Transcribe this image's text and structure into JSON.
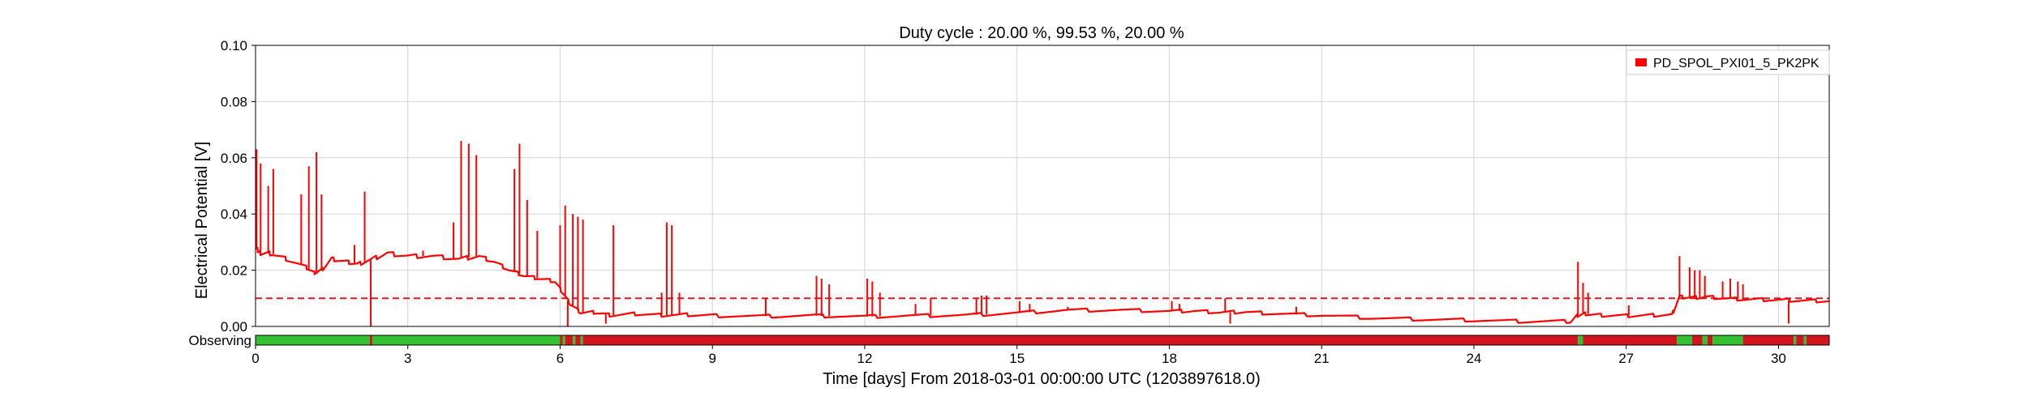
{
  "chart_data": {
    "type": "line",
    "title": "Duty cycle : 20.00 %, 99.53 %, 20.00 %",
    "xlabel": "Time [days] From 2018-03-01 00:00:00 UTC (1203897618.0)",
    "ylabel": "Electrical Potential [V]",
    "xlim": [
      0,
      31
    ],
    "ylim": [
      0,
      0.1
    ],
    "x_ticks": [
      0,
      3,
      6,
      9,
      12,
      15,
      18,
      21,
      24,
      27,
      30
    ],
    "y_ticks": [
      0.0,
      0.02,
      0.04,
      0.06,
      0.08,
      0.1
    ],
    "y_tick_labels": [
      "0.00",
      "0.02",
      "0.04",
      "0.06",
      "0.08",
      "0.10"
    ],
    "grid": true,
    "legend_position": "top-right",
    "threshold": {
      "value": 0.01,
      "style": "dashed",
      "color": "#e8141c"
    },
    "series": [
      {
        "name": "PD_SPOL_PXI01_5_PK2PK",
        "color": "#ff0000",
        "x": [
          0,
          0.05,
          0.1,
          0.3,
          0.6,
          1.0,
          1.15,
          1.3,
          1.5,
          1.8,
          2.0,
          2.3,
          2.6,
          3.0,
          3.5,
          4.0,
          4.4,
          4.7,
          5.0,
          5.3,
          5.6,
          5.9,
          6.05,
          6.2,
          6.4,
          6.7,
          7.0,
          7.5,
          8.0,
          8.5,
          9.0,
          10.0,
          11.0,
          12.0,
          13.0,
          14.0,
          15.0,
          16.0,
          17.0,
          18.0,
          18.5,
          19.0,
          19.5,
          20.0,
          21.0,
          22.0,
          23.0,
          24.0,
          25.0,
          25.9,
          26.05,
          26.2,
          26.5,
          27.0,
          27.5,
          27.9,
          28.05,
          28.3,
          28.6,
          29.0,
          29.5,
          30.0,
          30.5,
          31.0
        ],
        "values": [
          0.028,
          0.027,
          0.026,
          0.026,
          0.024,
          0.021,
          0.019,
          0.02,
          0.024,
          0.023,
          0.022,
          0.024,
          0.026,
          0.025,
          0.025,
          0.024,
          0.025,
          0.023,
          0.02,
          0.018,
          0.017,
          0.016,
          0.012,
          0.008,
          0.005,
          0.005,
          0.004,
          0.0045,
          0.004,
          0.0042,
          0.0038,
          0.0036,
          0.0038,
          0.0035,
          0.0038,
          0.004,
          0.0048,
          0.0058,
          0.0058,
          0.0055,
          0.0055,
          0.005,
          0.0052,
          0.0045,
          0.004,
          0.003,
          0.0025,
          0.0022,
          0.0018,
          0.0018,
          0.004,
          0.0045,
          0.004,
          0.0038,
          0.004,
          0.004,
          0.0105,
          0.0102,
          0.0105,
          0.0098,
          0.0096,
          0.0094,
          0.0092,
          0.009
        ]
      }
    ],
    "spikes": [
      [
        0.02,
        0.063
      ],
      [
        0.1,
        0.058
      ],
      [
        0.25,
        0.05
      ],
      [
        0.35,
        0.056
      ],
      [
        0.9,
        0.047
      ],
      [
        1.05,
        0.057
      ],
      [
        1.2,
        0.062
      ],
      [
        1.3,
        0.047
      ],
      [
        1.95,
        0.029
      ],
      [
        2.15,
        0.048
      ],
      [
        2.27,
        0.0
      ],
      [
        3.3,
        0.027
      ],
      [
        3.9,
        0.037
      ],
      [
        4.05,
        0.066
      ],
      [
        4.2,
        0.065
      ],
      [
        4.35,
        0.061
      ],
      [
        5.1,
        0.056
      ],
      [
        5.2,
        0.065
      ],
      [
        5.35,
        0.045
      ],
      [
        5.55,
        0.034
      ],
      [
        6.0,
        0.036
      ],
      [
        6.1,
        0.043
      ],
      [
        6.15,
        0.0
      ],
      [
        6.25,
        0.04
      ],
      [
        6.35,
        0.039
      ],
      [
        6.45,
        0.038
      ],
      [
        6.9,
        0.001
      ],
      [
        7.05,
        0.036
      ],
      [
        8.0,
        0.012
      ],
      [
        8.1,
        0.037
      ],
      [
        8.2,
        0.036
      ],
      [
        8.35,
        0.012
      ],
      [
        10.05,
        0.01
      ],
      [
        11.05,
        0.018
      ],
      [
        11.15,
        0.017
      ],
      [
        11.3,
        0.015
      ],
      [
        12.05,
        0.017
      ],
      [
        12.15,
        0.016
      ],
      [
        12.3,
        0.012
      ],
      [
        13.0,
        0.008
      ],
      [
        13.3,
        0.01
      ],
      [
        14.2,
        0.01
      ],
      [
        14.3,
        0.011
      ],
      [
        14.4,
        0.011
      ],
      [
        15.05,
        0.009
      ],
      [
        15.25,
        0.008
      ],
      [
        16.0,
        0.007
      ],
      [
        18.05,
        0.009
      ],
      [
        18.2,
        0.008
      ],
      [
        19.1,
        0.01
      ],
      [
        19.2,
        0.001
      ],
      [
        20.5,
        0.007
      ],
      [
        26.05,
        0.023
      ],
      [
        26.15,
        0.0155
      ],
      [
        26.25,
        0.012
      ],
      [
        27.05,
        0.0075
      ],
      [
        28.05,
        0.025
      ],
      [
        28.25,
        0.021
      ],
      [
        28.35,
        0.02
      ],
      [
        28.45,
        0.02
      ],
      [
        28.55,
        0.018
      ],
      [
        28.9,
        0.016
      ],
      [
        29.05,
        0.017
      ],
      [
        29.2,
        0.016
      ],
      [
        29.3,
        0.015
      ],
      [
        30.2,
        0.001
      ]
    ],
    "state": {
      "label": "Observing",
      "on_color": "#33c133",
      "off_color": "#d1141d",
      "segments": [
        [
          0,
          2.25,
          "on"
        ],
        [
          2.25,
          2.3,
          "off"
        ],
        [
          2.3,
          6.0,
          "on"
        ],
        [
          6.0,
          6.05,
          "off"
        ],
        [
          6.05,
          6.1,
          "on"
        ],
        [
          6.1,
          6.25,
          "off"
        ],
        [
          6.25,
          6.3,
          "on"
        ],
        [
          6.3,
          6.4,
          "off"
        ],
        [
          6.4,
          6.45,
          "on"
        ],
        [
          6.45,
          26.05,
          "off"
        ],
        [
          26.05,
          26.15,
          "on"
        ],
        [
          26.15,
          28.0,
          "off"
        ],
        [
          28.0,
          28.3,
          "on"
        ],
        [
          28.3,
          28.5,
          "off"
        ],
        [
          28.5,
          28.6,
          "on"
        ],
        [
          28.6,
          28.7,
          "off"
        ],
        [
          28.7,
          29.3,
          "on"
        ],
        [
          29.3,
          30.3,
          "off"
        ],
        [
          30.3,
          30.35,
          "on"
        ],
        [
          30.35,
          30.5,
          "off"
        ],
        [
          30.5,
          30.55,
          "on"
        ],
        [
          30.55,
          31.0,
          "off"
        ]
      ]
    }
  }
}
